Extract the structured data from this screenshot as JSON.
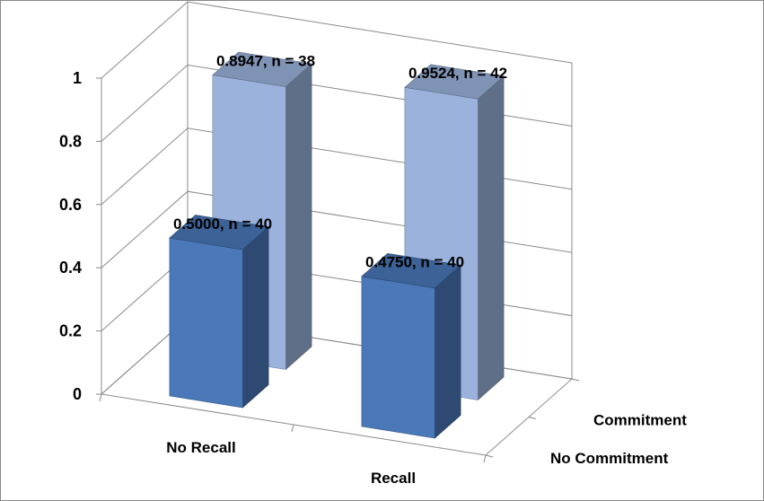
{
  "chart_data": {
    "type": "bar",
    "subtype": "3d-clustered-column",
    "title": "",
    "ylim": [
      0,
      1
    ],
    "yticks": [
      "0",
      "0.2",
      "0.4",
      "0.6",
      "0.8",
      "1"
    ],
    "categories": [
      "No Recall",
      "Recall"
    ],
    "series": [
      {
        "name": "No Commitment",
        "values": [
          0.5,
          0.475
        ],
        "labels": [
          "0.5000, n = 40",
          "0.4750, n = 40"
        ],
        "color": "#4a78b8"
      },
      {
        "name": "Commitment",
        "values": [
          0.8947,
          0.9524
        ],
        "labels": [
          "0.8947, n = 38",
          "0.9524, n = 42"
        ],
        "color": "#9bb3dc"
      }
    ],
    "grid": true,
    "legend": "none"
  }
}
